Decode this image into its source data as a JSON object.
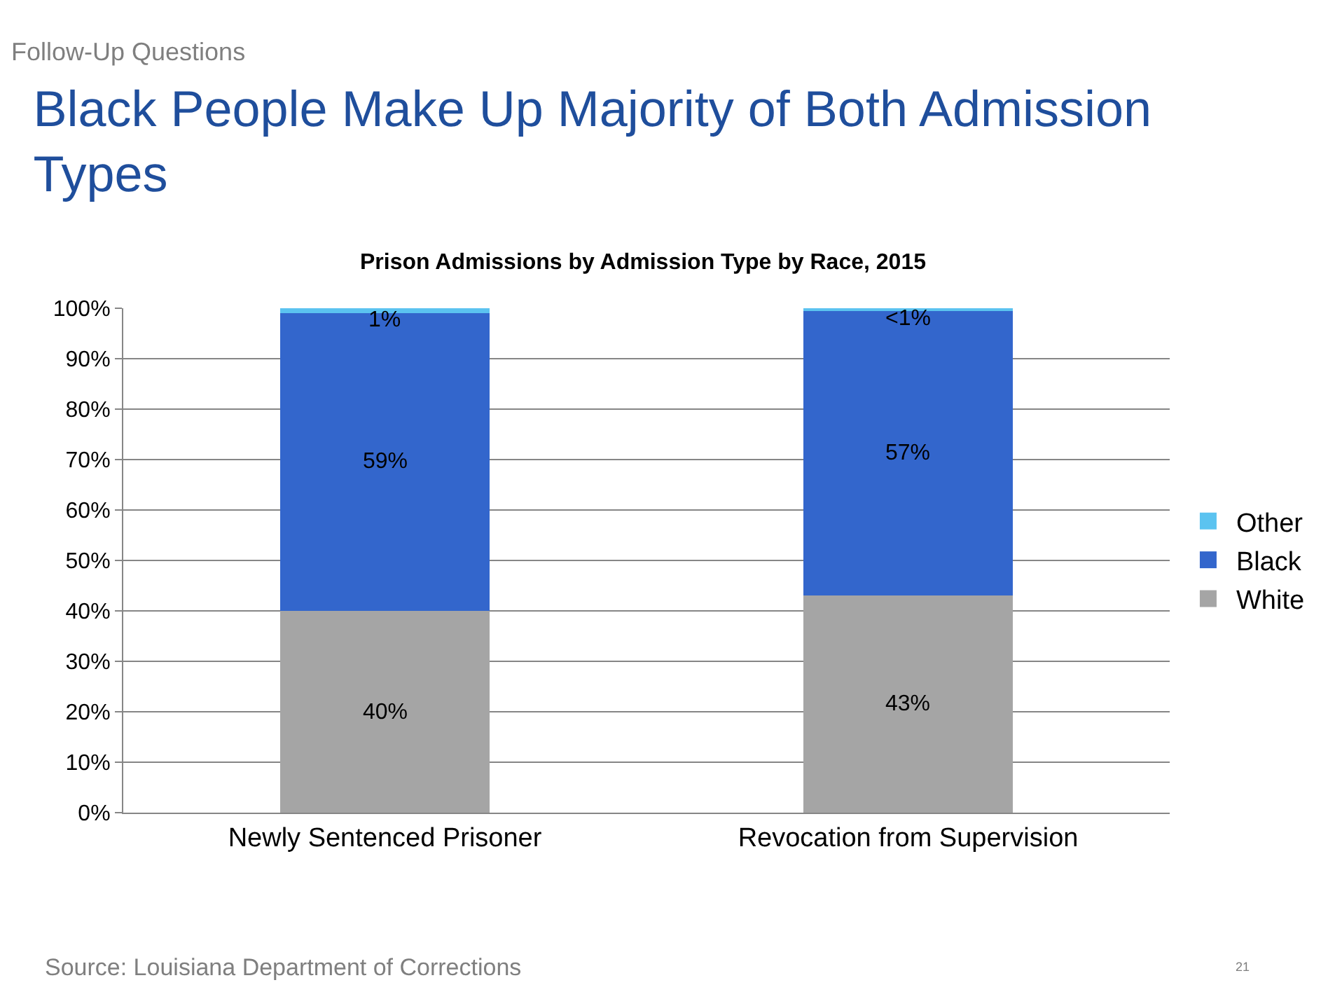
{
  "chart_data": {
    "type": "bar",
    "stacked": true,
    "title": "Black People Make Up Majority of Both Admission Types",
    "subtitle": "Prison Admissions by Admission Type by Race, 2015",
    "annotations": [
      "Follow-Up Questions",
      "Source: Louisiana Department of Corrections",
      "21"
    ],
    "categories": [
      "Newly Sentenced Prisoner",
      "Revocation from Supervision"
    ],
    "series": [
      {
        "name": "White",
        "color": "#a5a5a5",
        "values": [
          40,
          43
        ],
        "value_labels": [
          "40%",
          "43%"
        ]
      },
      {
        "name": "Black",
        "color": "#3366cc",
        "values": [
          59,
          56.6
        ],
        "value_labels": [
          "59%",
          "57%"
        ]
      },
      {
        "name": "Other",
        "color": "#5bc3f0",
        "values": [
          1,
          0.4
        ],
        "value_labels": [
          "1%",
          "<1%"
        ]
      }
    ],
    "ylim": [
      0,
      100
    ],
    "yticks": [
      {
        "value": 0,
        "label": "0%"
      },
      {
        "value": 10,
        "label": "10%"
      },
      {
        "value": 20,
        "label": "20%"
      },
      {
        "value": 30,
        "label": "30%"
      },
      {
        "value": 40,
        "label": "40%"
      },
      {
        "value": 50,
        "label": "50%"
      },
      {
        "value": 60,
        "label": "60%"
      },
      {
        "value": 70,
        "label": "70%"
      },
      {
        "value": 80,
        "label": "80%"
      },
      {
        "value": 90,
        "label": "90%"
      },
      {
        "value": 100,
        "label": "100%"
      }
    ],
    "grid": "y",
    "legend": "right"
  }
}
